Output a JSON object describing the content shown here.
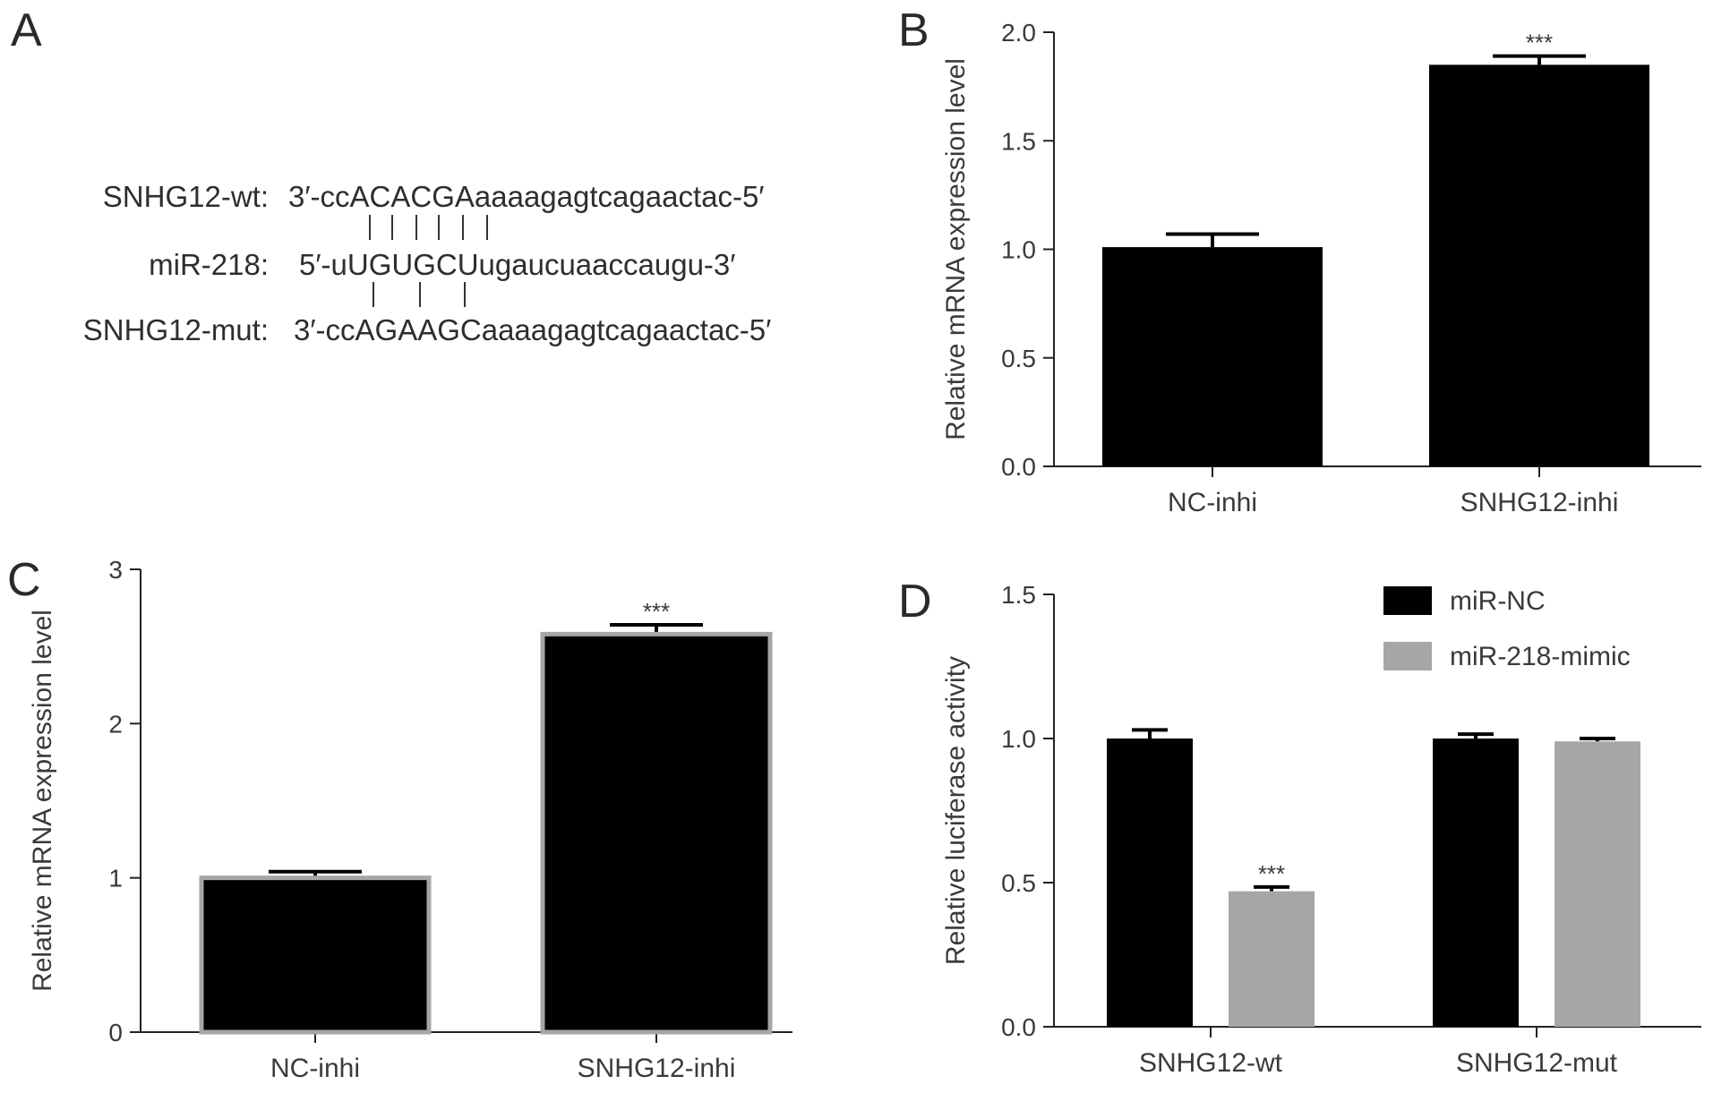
{
  "panels": {
    "a": {
      "letter": "A",
      "rows": [
        {
          "label": "SNHG12-wt:",
          "seq": "3′-ccACACGAaaaagagtcagaactac-5′"
        },
        {
          "label": "miR-218:",
          "seq": "5′-uUGUGCUugaucuaaccaugu-3′"
        },
        {
          "label": "SNHG12-mut:",
          "seq": "3′-ccAGAAGCaaaagagtcagaactac-5′"
        }
      ]
    },
    "b": {
      "letter": "B"
    },
    "c": {
      "letter": "C"
    },
    "d": {
      "letter": "D"
    }
  },
  "chart_data": [
    {
      "panel": "B",
      "type": "bar",
      "title": "",
      "xlabel": "",
      "ylabel": "Relative mRNA expression level",
      "categories": [
        "NC-inhi",
        "SNHG12-inhi"
      ],
      "series": [
        {
          "values": [
            1.01,
            1.85
          ],
          "errors": [
            0.06,
            0.04
          ]
        }
      ],
      "ylim": [
        0,
        2.0
      ],
      "yticks": [
        "0.0",
        "0.5",
        "1.0",
        "1.5",
        "2.0"
      ],
      "annotations": [
        {
          "category": "SNHG12-inhi",
          "text": "***"
        }
      ],
      "colors": {
        "bar": "#000000",
        "bar_edge": "#000000"
      }
    },
    {
      "panel": "C",
      "type": "bar",
      "title": "",
      "xlabel": "",
      "ylabel": "Relative mRNA expression level",
      "categories": [
        "NC-inhi",
        "SNHG12-inhi"
      ],
      "series": [
        {
          "values": [
            1.0,
            2.58
          ],
          "errors": [
            0.04,
            0.06
          ]
        }
      ],
      "ylim": [
        0,
        3
      ],
      "yticks": [
        "0",
        "1",
        "2",
        "3"
      ],
      "annotations": [
        {
          "category": "SNHG12-inhi",
          "text": "***"
        }
      ],
      "colors": {
        "bar": "#000000",
        "bar_edge": "#a6a6a6"
      }
    },
    {
      "panel": "D",
      "type": "bar",
      "title": "",
      "xlabel": "",
      "ylabel": "Relative luciferase activity",
      "categories": [
        "SNHG12-wt",
        "SNHG12-mut"
      ],
      "series": [
        {
          "name": "miR-NC",
          "values": [
            1.0,
            1.0
          ],
          "errors": [
            0.03,
            0.015
          ],
          "color": "#000000"
        },
        {
          "name": "miR-218-mimic",
          "values": [
            0.47,
            0.99
          ],
          "errors": [
            0.015,
            0.01
          ],
          "color": "#a6a6a6"
        }
      ],
      "ylim": [
        0,
        1.5
      ],
      "yticks": [
        "0.0",
        "0.5",
        "1.0",
        "1.5"
      ],
      "legend": "top-right",
      "annotations": [
        {
          "category": "SNHG12-wt",
          "series": "miR-218-mimic",
          "text": "***"
        }
      ]
    }
  ]
}
